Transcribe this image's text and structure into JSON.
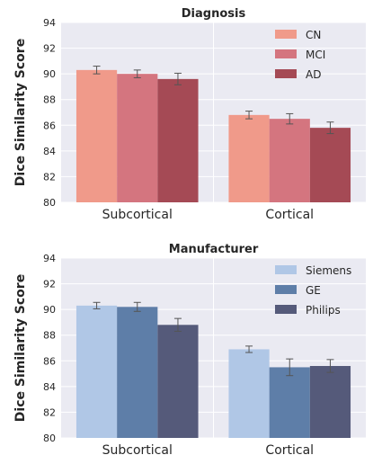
{
  "chart_data": [
    {
      "type": "bar",
      "title": "Diagnosis",
      "ylabel": "Dice Similarity Score",
      "xlabel": "",
      "ylim": [
        80,
        94
      ],
      "yticks": [
        80,
        82,
        84,
        86,
        88,
        90,
        92,
        94
      ],
      "categories": [
        "Subcortical",
        "Cortical"
      ],
      "grid": true,
      "legend_position": "top-right",
      "series": [
        {
          "name": "CN",
          "color": "#f09a8a",
          "values": [
            90.3,
            86.8
          ],
          "errors": [
            0.3,
            0.3
          ]
        },
        {
          "name": "MCI",
          "color": "#d4757f",
          "values": [
            90.0,
            86.5
          ],
          "errors": [
            0.3,
            0.4
          ]
        },
        {
          "name": "AD",
          "color": "#a54a55",
          "values": [
            89.6,
            85.8
          ],
          "errors": [
            0.45,
            0.45
          ]
        }
      ]
    },
    {
      "type": "bar",
      "title": "Manufacturer",
      "ylabel": "Dice Similarity Score",
      "xlabel": "",
      "ylim": [
        80,
        94
      ],
      "yticks": [
        80,
        82,
        84,
        86,
        88,
        90,
        92,
        94
      ],
      "categories": [
        "Subcortical",
        "Cortical"
      ],
      "grid": true,
      "legend_position": "top-right",
      "series": [
        {
          "name": "Siemens",
          "color": "#b0c7e6",
          "values": [
            90.3,
            86.9
          ],
          "errors": [
            0.25,
            0.25
          ]
        },
        {
          "name": "GE",
          "color": "#5e7ea8",
          "values": [
            90.2,
            85.5
          ],
          "errors": [
            0.35,
            0.65
          ]
        },
        {
          "name": "Philips",
          "color": "#555a7a",
          "values": [
            88.8,
            85.6
          ],
          "errors": [
            0.5,
            0.5
          ]
        }
      ]
    }
  ]
}
